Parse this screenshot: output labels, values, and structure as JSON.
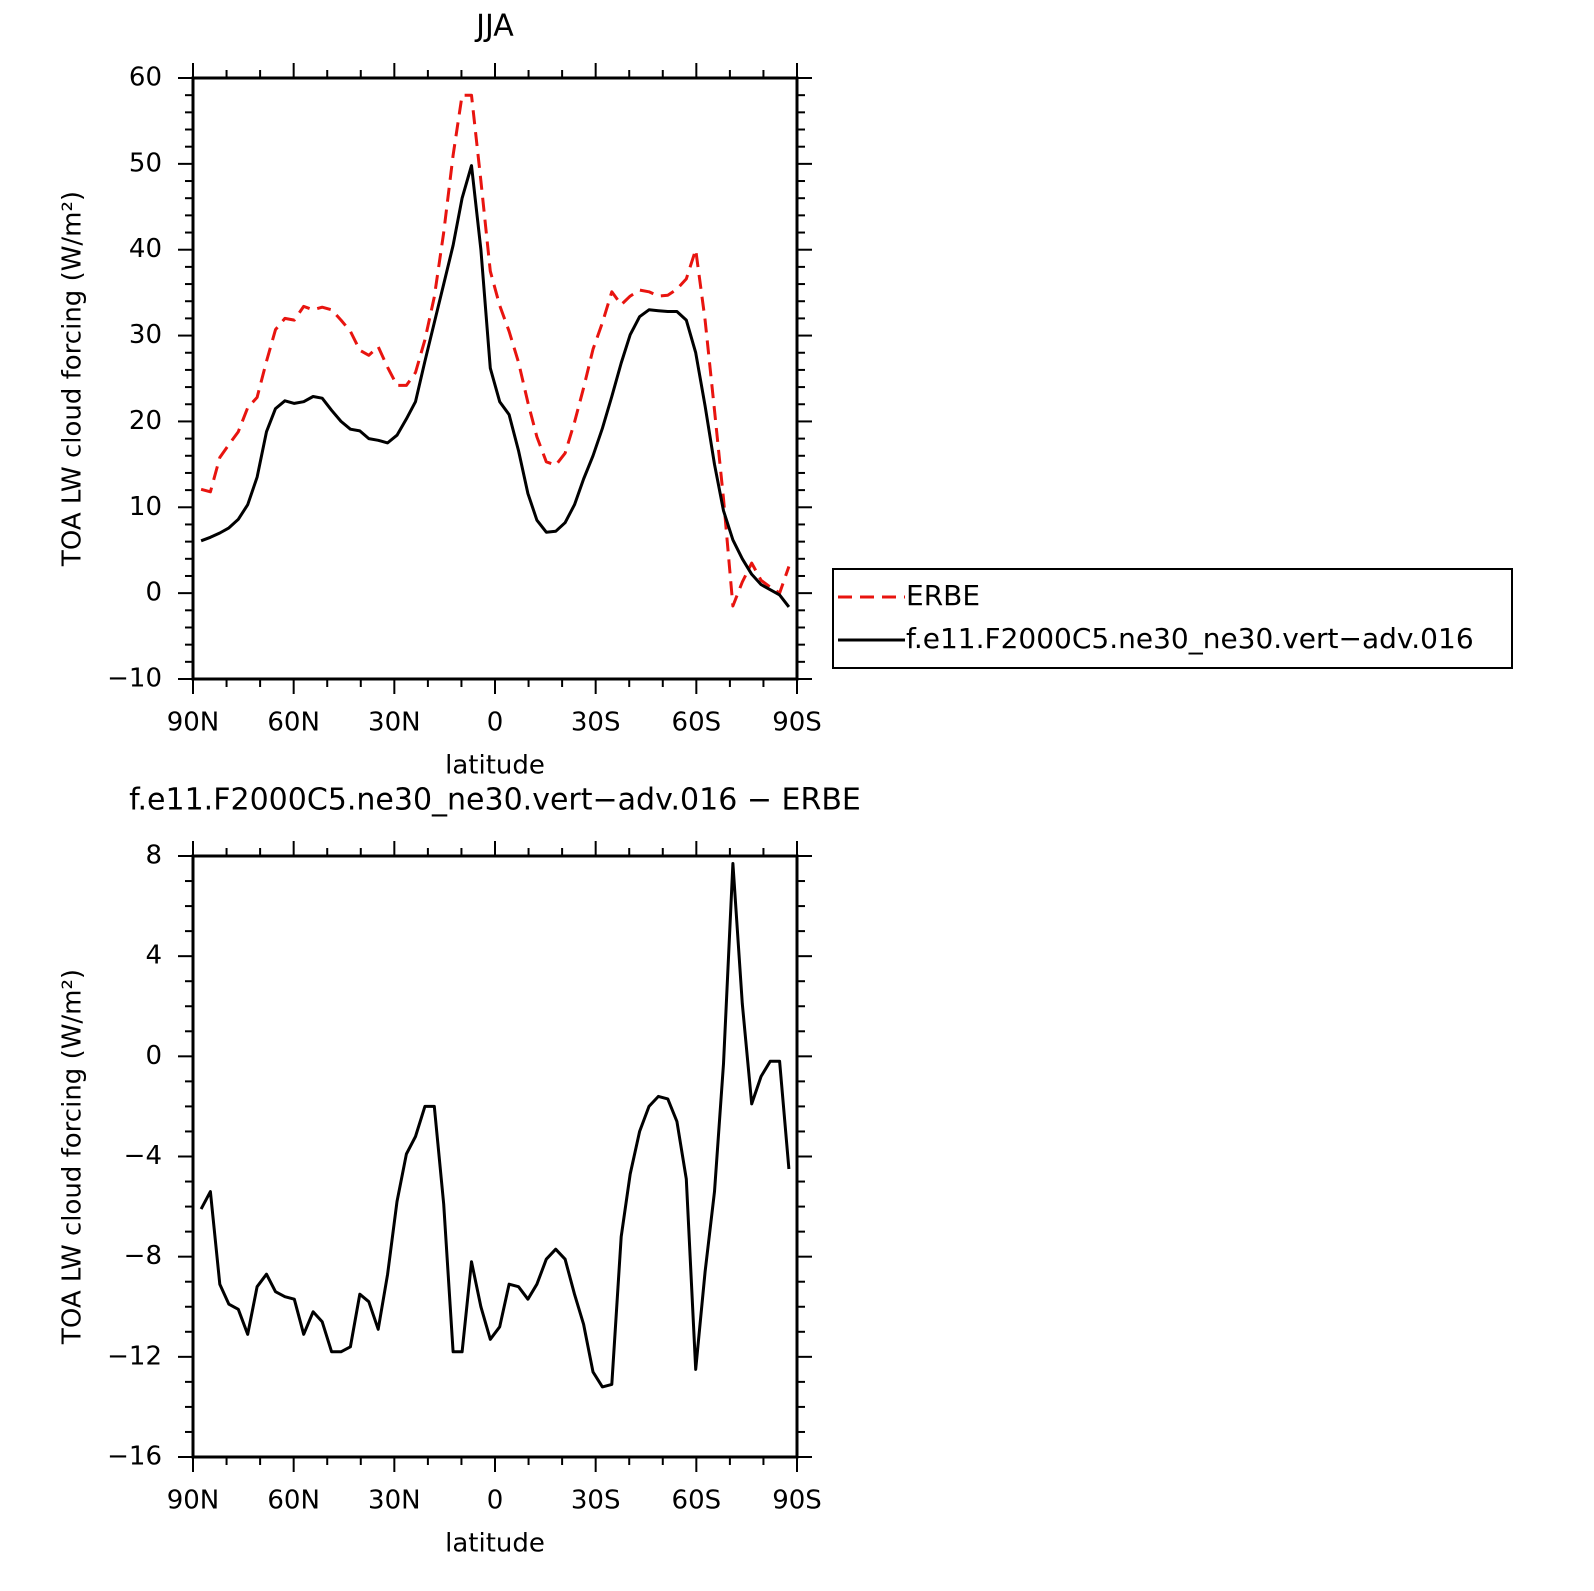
{
  "chart_data": [
    {
      "type": "line",
      "title": "JJA",
      "xlabel": "latitude",
      "ylabel": "TOA LW cloud forcing (W/m²)",
      "x": [
        87.6,
        84.8,
        82.0,
        79.3,
        76.5,
        73.7,
        70.9,
        68.1,
        65.4,
        62.6,
        59.8,
        57.0,
        54.2,
        51.5,
        48.7,
        45.9,
        43.1,
        40.3,
        37.6,
        34.8,
        32.0,
        29.2,
        26.4,
        23.7,
        20.9,
        18.1,
        15.3,
        12.5,
        9.8,
        7.0,
        4.2,
        1.4,
        -1.4,
        -4.2,
        -7.0,
        -9.8,
        -12.5,
        -15.3,
        -18.1,
        -20.9,
        -23.7,
        -26.4,
        -29.2,
        -32.0,
        -34.8,
        -37.6,
        -40.3,
        -43.1,
        -45.9,
        -48.7,
        -51.5,
        -54.2,
        -57.0,
        -59.8,
        -62.6,
        -65.4,
        -68.1,
        -70.9,
        -73.7,
        -76.5,
        -79.3,
        -82.0,
        -84.8,
        -87.6
      ],
      "series": [
        {
          "name": "ERBE",
          "color": "#e8140f",
          "style": "dashed",
          "values": [
            12.1,
            11.8,
            15.8,
            17.3,
            18.8,
            21.6,
            22.8,
            27.0,
            30.7,
            32.0,
            31.8,
            33.4,
            33.0,
            33.3,
            33.0,
            31.8,
            30.5,
            28.3,
            27.7,
            28.7,
            26.3,
            24.2,
            24.2,
            25.7,
            29.5,
            34.5,
            42.0,
            51.0,
            58.0,
            58.0,
            48.0,
            37.5,
            33.5,
            30.5,
            26.9,
            22.2,
            18.2,
            15.3,
            14.9,
            16.3,
            19.9,
            23.9,
            28.4,
            31.5,
            35.1,
            33.6,
            34.6,
            35.3,
            35.1,
            34.6,
            34.7,
            35.4,
            36.6,
            40.0,
            31.8,
            21.3,
            11.0,
            -1.5,
            1.3,
            3.5,
            1.5,
            0.7,
            0.0,
            3.1
          ]
        },
        {
          "name": "f.e11.F2000C5.ne30_ne30.vert−adv.016",
          "color": "#000000",
          "style": "solid",
          "values": [
            6.1,
            6.5,
            7.0,
            7.6,
            8.6,
            10.3,
            13.5,
            18.8,
            21.5,
            22.4,
            22.1,
            22.3,
            22.9,
            22.7,
            21.3,
            20.0,
            19.1,
            18.9,
            18.0,
            17.8,
            17.5,
            18.4,
            20.3,
            22.3,
            27.0,
            31.5,
            36.0,
            40.5,
            46.0,
            49.8,
            40.0,
            26.2,
            22.3,
            20.8,
            16.6,
            11.6,
            8.5,
            7.1,
            7.2,
            8.2,
            10.3,
            13.3,
            16.0,
            19.2,
            22.9,
            26.8,
            30.1,
            32.2,
            33.0,
            32.9,
            32.8,
            32.8,
            31.8,
            28.0,
            21.8,
            15.0,
            9.6,
            6.2,
            4.0,
            2.2,
            1.0,
            0.4,
            -0.2,
            -1.6
          ]
        }
      ],
      "xlim": [
        90,
        -90
      ],
      "xticks": [
        {
          "value": 90,
          "label": "90N"
        },
        {
          "value": 60,
          "label": "60N"
        },
        {
          "value": 30,
          "label": "30N"
        },
        0,
        {
          "value": -30,
          "label": "30S"
        },
        {
          "value": -60,
          "label": "60S"
        },
        {
          "value": -90,
          "label": "90S"
        }
      ],
      "xminorticks": [
        80,
        70,
        50,
        40,
        20,
        10,
        -10,
        -20,
        -40,
        -50,
        -70,
        -80
      ],
      "ylim": [
        -10,
        60
      ],
      "yticks": [
        {
          "value": -10,
          "label": "−10"
        },
        0,
        10,
        20,
        30,
        40,
        50,
        60
      ],
      "yminorticks": [
        -8,
        -6,
        -4,
        -2,
        2,
        4,
        6,
        8,
        12,
        14,
        16,
        18,
        22,
        24,
        26,
        28,
        32,
        34,
        36,
        38,
        42,
        44,
        46,
        48,
        52,
        54,
        56,
        58
      ],
      "legend": "right"
    },
    {
      "type": "line",
      "title": "f.e11.F2000C5.ne30_ne30.vert−adv.016 − ERBE",
      "xlabel": "latitude",
      "ylabel": "TOA LW cloud forcing (W/m²)",
      "x": [
        87.6,
        84.8,
        82.0,
        79.3,
        76.5,
        73.7,
        70.9,
        68.1,
        65.4,
        62.6,
        59.8,
        57.0,
        54.2,
        51.5,
        48.7,
        45.9,
        43.1,
        40.3,
        37.6,
        34.8,
        32.0,
        29.2,
        26.4,
        23.7,
        20.9,
        18.1,
        15.3,
        12.5,
        9.8,
        7.0,
        4.2,
        1.4,
        -1.4,
        -4.2,
        -7.0,
        -9.8,
        -12.5,
        -15.3,
        -18.1,
        -20.9,
        -23.7,
        -26.4,
        -29.2,
        -32.0,
        -34.8,
        -37.6,
        -40.3,
        -43.1,
        -45.9,
        -48.7,
        -51.5,
        -54.2,
        -57.0,
        -59.8,
        -62.6,
        -65.4,
        -68.1,
        -70.9,
        -73.7,
        -76.5,
        -79.3,
        -82.0,
        -84.8,
        -87.6
      ],
      "color": "#000000",
      "values": [
        -6.1,
        -5.4,
        -9.1,
        -9.9,
        -10.1,
        -11.1,
        -9.2,
        -8.7,
        -9.4,
        -9.6,
        -9.7,
        -11.1,
        -10.2,
        -10.6,
        -11.8,
        -11.8,
        -11.6,
        -9.5,
        -9.8,
        -10.9,
        -8.7,
        -5.8,
        -3.9,
        -3.2,
        -2.0,
        -2.0,
        -5.9,
        -11.8,
        -11.8,
        -8.2,
        -10.0,
        -11.3,
        -10.8,
        -9.1,
        -9.2,
        -9.7,
        -9.1,
        -8.1,
        -7.7,
        -8.1,
        -9.5,
        -10.7,
        -12.6,
        -13.2,
        -13.1,
        -7.2,
        -4.7,
        -3.0,
        -2.0,
        -1.6,
        -1.7,
        -2.6,
        -4.9,
        -12.5,
        -8.6,
        -5.4,
        -0.3,
        7.7,
        2.1,
        -1.9,
        -0.8,
        -0.2,
        -0.2,
        -4.5
      ],
      "xlim": [
        90,
        -90
      ],
      "xticks": [
        {
          "value": 90,
          "label": "90N"
        },
        {
          "value": 60,
          "label": "60N"
        },
        {
          "value": 30,
          "label": "30N"
        },
        0,
        {
          "value": -30,
          "label": "30S"
        },
        {
          "value": -60,
          "label": "60S"
        },
        {
          "value": -90,
          "label": "90S"
        }
      ],
      "xminorticks": [
        80,
        70,
        50,
        40,
        20,
        10,
        -10,
        -20,
        -40,
        -50,
        -70,
        -80
      ],
      "ylim": [
        -16,
        8
      ],
      "yticks": [
        {
          "value": -16,
          "label": "−16"
        },
        {
          "value": -12,
          "label": "−12"
        },
        {
          "value": -8,
          "label": "−8"
        },
        {
          "value": -4,
          "label": "−4"
        },
        0,
        4,
        8
      ],
      "yminorticks": [
        -15,
        -14,
        -13,
        -11,
        -10,
        -9,
        -7,
        -6,
        -5,
        -3,
        -2,
        -1,
        1,
        2,
        3,
        5,
        6,
        7
      ]
    }
  ]
}
